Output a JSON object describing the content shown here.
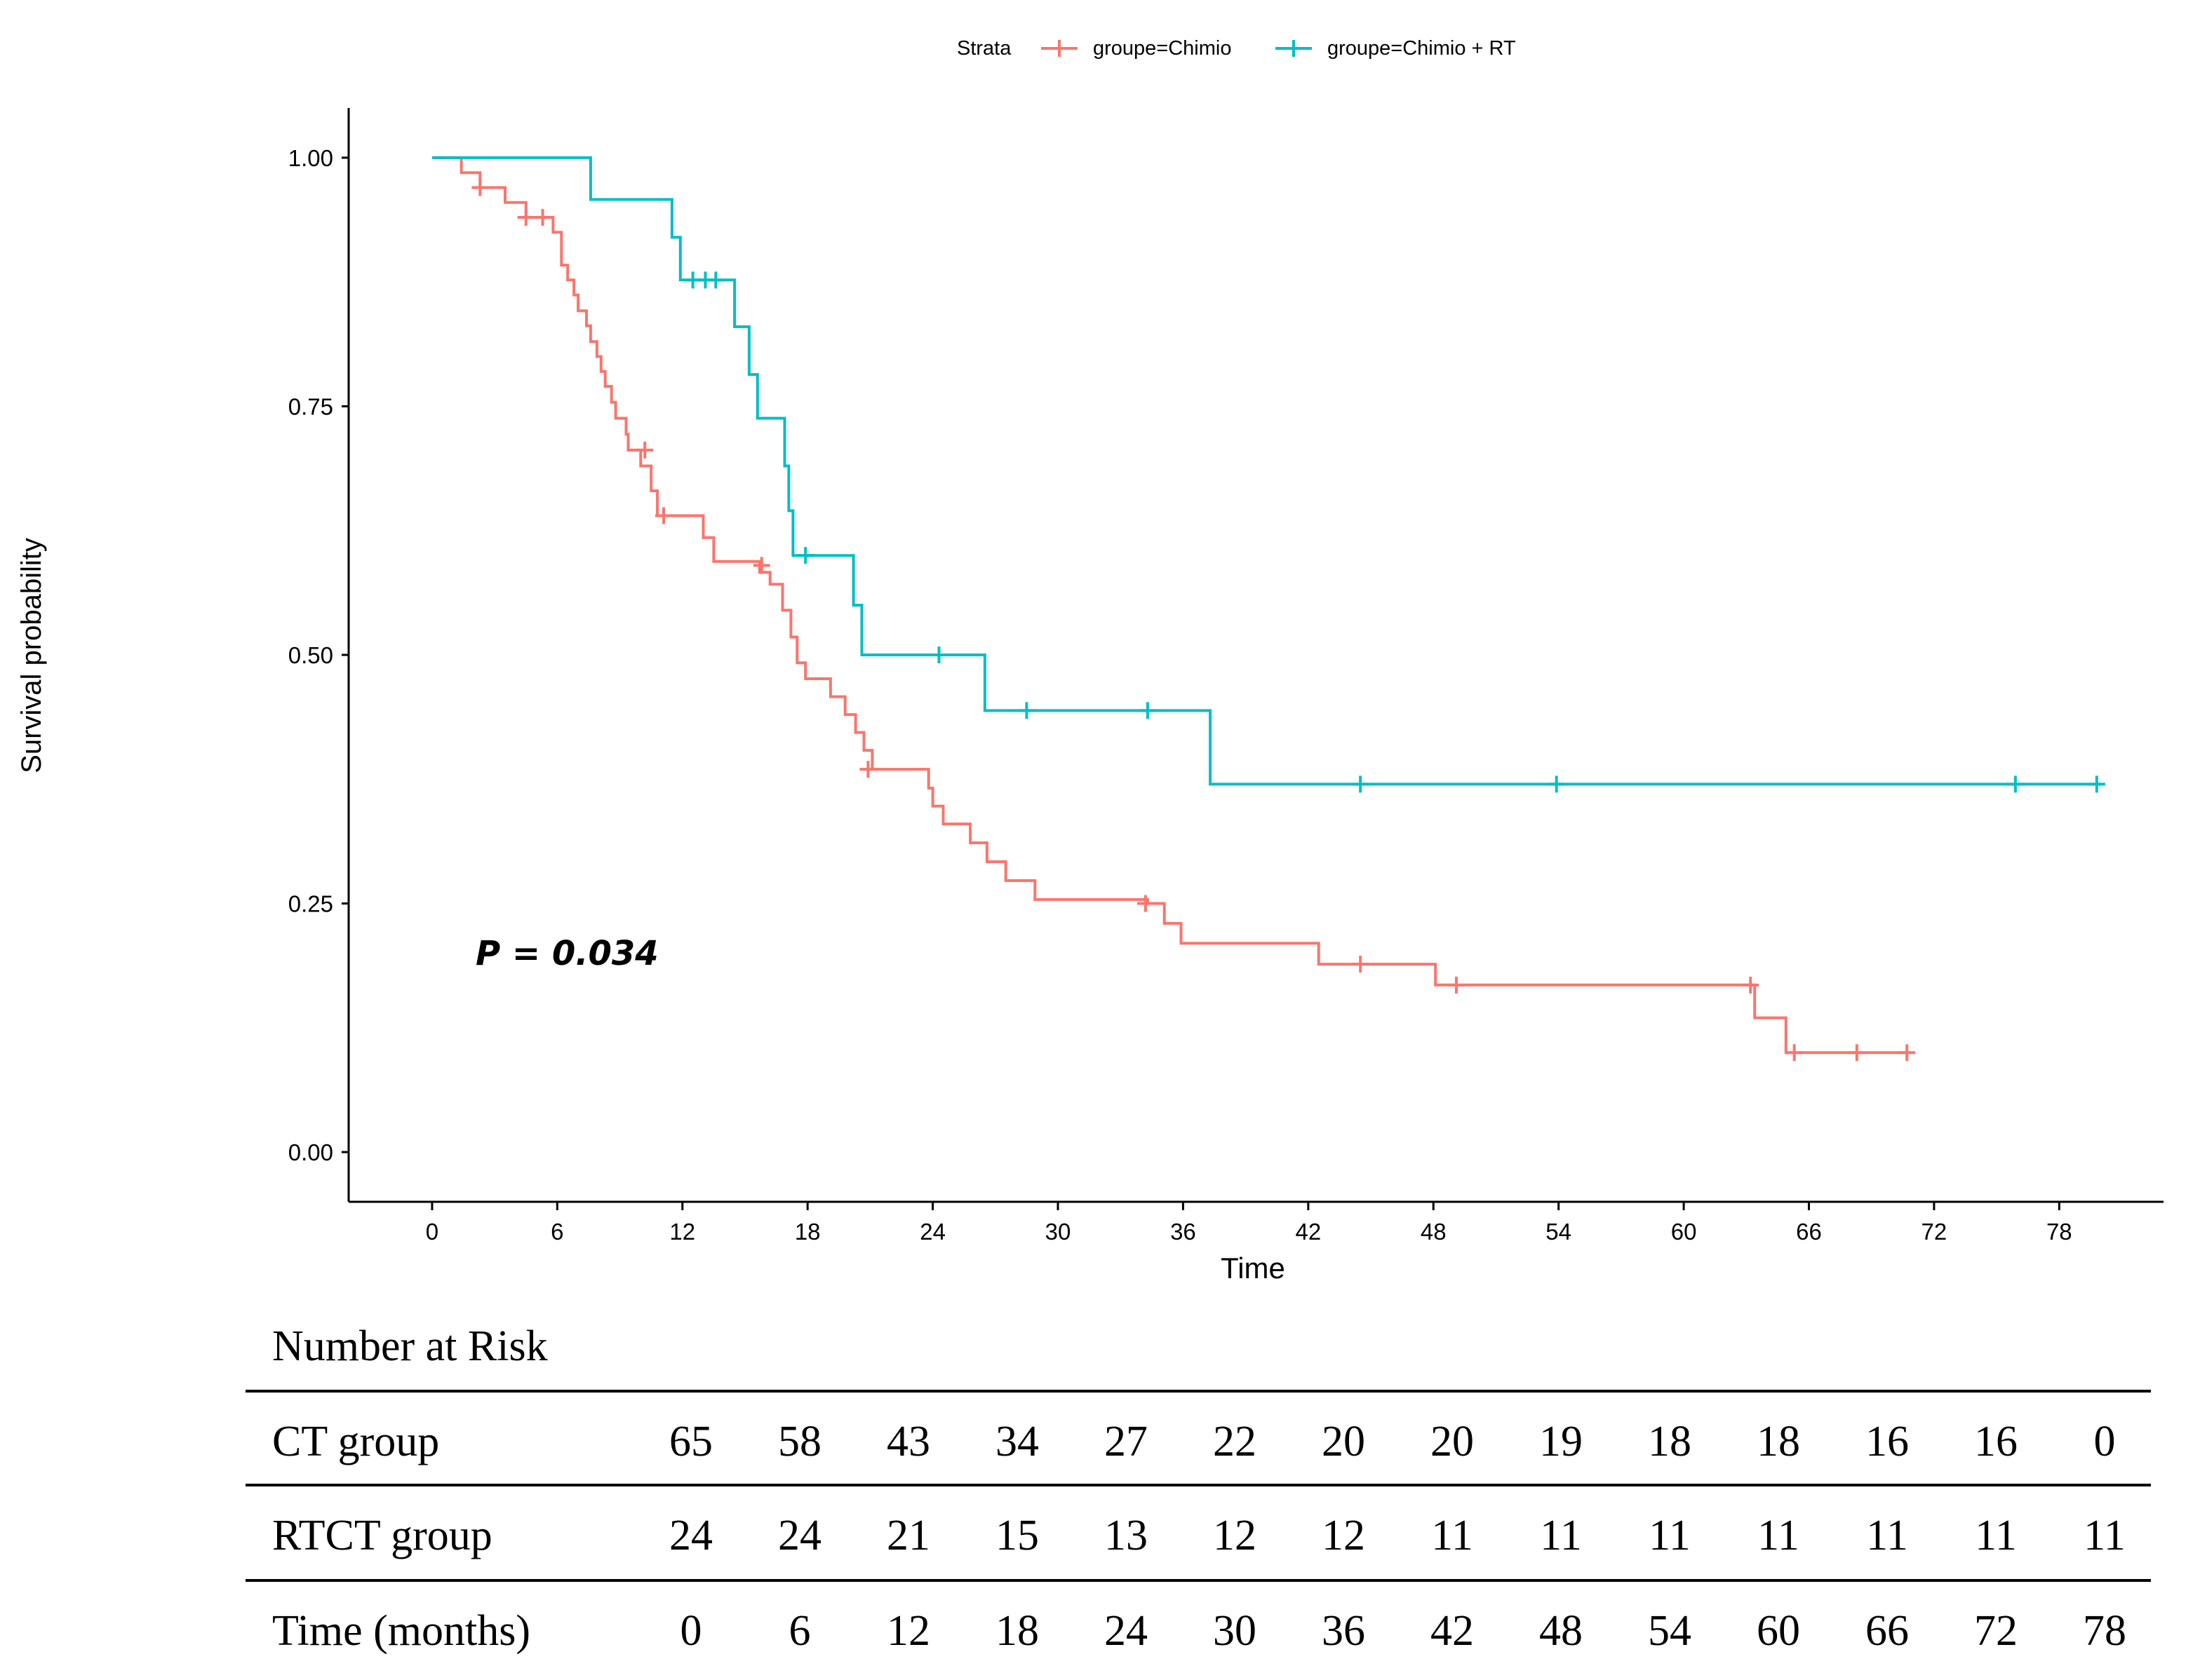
{
  "chart_data": {
    "type": "line",
    "subtype": "kaplan-meier",
    "xlabel": "Time",
    "ylabel": "Survival probability",
    "xlim": [
      -4,
      83
    ],
    "ylim": [
      -0.05,
      1.05
    ],
    "xticks": [
      0,
      6,
      12,
      18,
      24,
      30,
      36,
      42,
      48,
      54,
      60,
      66,
      72,
      78
    ],
    "xtick_labels": [
      "0",
      "6",
      "12",
      "18",
      "24",
      "30",
      "36",
      "42",
      "48",
      "54",
      "60",
      "66",
      "72",
      "78"
    ],
    "yticks": [
      0,
      0.25,
      0.5,
      0.75,
      1.0
    ],
    "ytick_labels": [
      "0.00",
      "0.25",
      "0.50",
      "0.75",
      "1.00"
    ],
    "grid": false,
    "legend": {
      "title": "Strata",
      "position": "top",
      "entries": [
        "groupe=Chimio",
        "groupe=Chimio + RT"
      ]
    },
    "annotation": "P = 0.034",
    "series": [
      {
        "name": "groupe=Chimio",
        "color": "#F8766D",
        "steps": [
          [
            0,
            1.0
          ],
          [
            1.4,
            0.985
          ],
          [
            2.3,
            0.97
          ],
          [
            3.5,
            0.955
          ],
          [
            4.5,
            0.94
          ],
          [
            5.8,
            0.925
          ],
          [
            6.2,
            0.892
          ],
          [
            6.5,
            0.877
          ],
          [
            6.8,
            0.862
          ],
          [
            7.0,
            0.846
          ],
          [
            7.4,
            0.831
          ],
          [
            7.6,
            0.815
          ],
          [
            7.9,
            0.8
          ],
          [
            8.1,
            0.785
          ],
          [
            8.3,
            0.77
          ],
          [
            8.6,
            0.754
          ],
          [
            8.8,
            0.738
          ],
          [
            9.3,
            0.722
          ],
          [
            9.4,
            0.706
          ],
          [
            10.0,
            0.69
          ],
          [
            10.5,
            0.665
          ],
          [
            10.8,
            0.64
          ],
          [
            13.0,
            0.618
          ],
          [
            13.5,
            0.594
          ],
          [
            15.7,
            0.583
          ],
          [
            16.2,
            0.571
          ],
          [
            16.8,
            0.545
          ],
          [
            17.2,
            0.518
          ],
          [
            17.5,
            0.492
          ],
          [
            17.9,
            0.476
          ],
          [
            19.1,
            0.458
          ],
          [
            19.8,
            0.44
          ],
          [
            20.3,
            0.422
          ],
          [
            20.7,
            0.404
          ],
          [
            21.1,
            0.385
          ],
          [
            23.8,
            0.366
          ],
          [
            24.0,
            0.348
          ],
          [
            24.5,
            0.33
          ],
          [
            25.8,
            0.311
          ],
          [
            26.6,
            0.292
          ],
          [
            27.5,
            0.273
          ],
          [
            28.9,
            0.254
          ],
          [
            34.3,
            0.25
          ],
          [
            35.1,
            0.23
          ],
          [
            35.9,
            0.21
          ],
          [
            42.5,
            0.189
          ],
          [
            48.1,
            0.168
          ],
          [
            63.4,
            0.135
          ],
          [
            64.9,
            0.1
          ]
        ],
        "end": 70.8,
        "censor": [
          [
            2.3,
            0.97
          ],
          [
            4.5,
            0.94
          ],
          [
            5.3,
            0.94
          ],
          [
            10.2,
            0.706
          ],
          [
            11.1,
            0.64
          ],
          [
            15.8,
            0.59
          ],
          [
            20.9,
            0.385
          ],
          [
            34.2,
            0.25
          ],
          [
            44.5,
            0.189
          ],
          [
            49.1,
            0.168
          ],
          [
            63.2,
            0.168
          ],
          [
            65.3,
            0.1
          ],
          [
            68.3,
            0.1
          ],
          [
            70.7,
            0.1
          ]
        ]
      },
      {
        "name": "groupe=Chimio + RT",
        "color": "#00BFC4",
        "steps": [
          [
            0,
            1.0
          ],
          [
            7.6,
            0.958
          ],
          [
            11.5,
            0.92
          ],
          [
            11.9,
            0.877
          ],
          [
            14.5,
            0.83
          ],
          [
            15.2,
            0.782
          ],
          [
            15.6,
            0.738
          ],
          [
            16.9,
            0.69
          ],
          [
            17.1,
            0.645
          ],
          [
            17.3,
            0.6
          ],
          [
            20.2,
            0.55
          ],
          [
            20.6,
            0.5
          ],
          [
            26.5,
            0.444
          ],
          [
            37.3,
            0.37
          ]
        ],
        "end": 80.0,
        "censor": [
          [
            12.5,
            0.877
          ],
          [
            13.1,
            0.877
          ],
          [
            13.6,
            0.877
          ],
          [
            17.9,
            0.6
          ],
          [
            24.3,
            0.5
          ],
          [
            28.5,
            0.444
          ],
          [
            34.3,
            0.444
          ],
          [
            44.5,
            0.37
          ],
          [
            53.9,
            0.37
          ],
          [
            75.9,
            0.37
          ],
          [
            79.8,
            0.37
          ]
        ]
      }
    ]
  },
  "risk_table": {
    "title": "Number at Risk",
    "rows": [
      {
        "label": "CT group",
        "values": [
          "65",
          "58",
          "43",
          "34",
          "27",
          "22",
          "20",
          "20",
          "19",
          "18",
          "18",
          "16",
          "16",
          "0"
        ]
      },
      {
        "label": "RTCT group",
        "values": [
          "24",
          "24",
          "21",
          "15",
          "13",
          "12",
          "12",
          "11",
          "11",
          "11",
          "11",
          "11",
          "11",
          "11"
        ]
      },
      {
        "label": "Time (months)",
        "values": [
          "0",
          "6",
          "12",
          "18",
          "24",
          "30",
          "36",
          "42",
          "48",
          "54",
          "60",
          "66",
          "72",
          "78"
        ]
      }
    ]
  }
}
